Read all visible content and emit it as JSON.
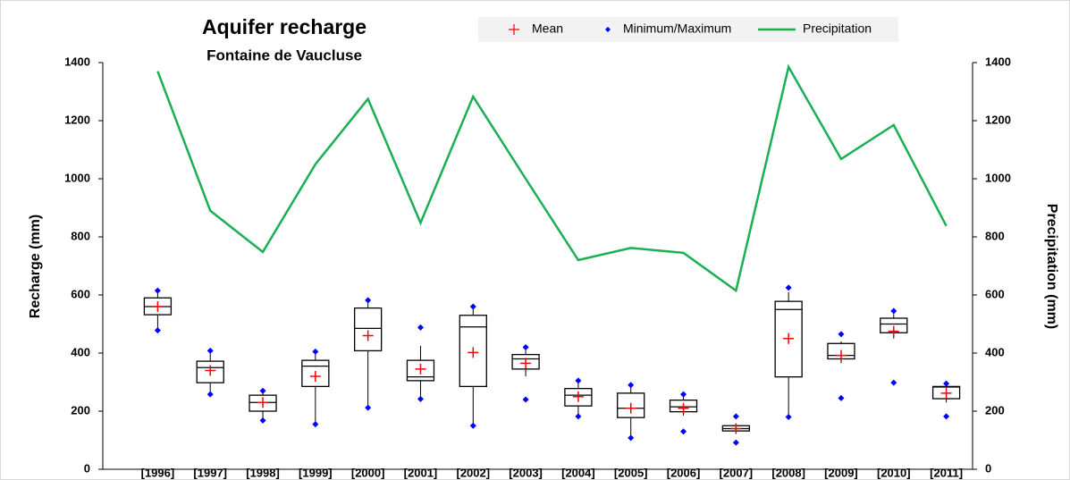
{
  "chart_data": {
    "type": "box",
    "title": "Aquifer recharge",
    "subtitle": "Fontaine de Vaucluse",
    "ylabel": "Recharge (mm)",
    "y2label": "Precipitation (mm)",
    "categories": [
      "[1996]",
      "[1997]",
      "[1998]",
      "[1999]",
      "[2000]",
      "[2001]",
      "[2002]",
      "[2003]",
      "[2004]",
      "[2005]",
      "[2006]",
      "[2007]",
      "[2008]",
      "[2009]",
      "[2010]",
      "[2011]"
    ],
    "boxes": {
      "color": "#000000",
      "whisker_low": [
        478,
        258,
        168,
        155,
        212,
        242,
        150,
        320,
        185,
        110,
        185,
        130,
        180,
        365,
        450,
        230
      ],
      "q1": [
        532,
        298,
        200,
        285,
        408,
        305,
        285,
        345,
        218,
        178,
        198,
        132,
        318,
        380,
        470,
        243
      ],
      "median": [
        560,
        350,
        230,
        355,
        485,
        318,
        490,
        380,
        255,
        210,
        215,
        140,
        550,
        392,
        500,
        283
      ],
      "q3": [
        590,
        372,
        255,
        375,
        555,
        375,
        530,
        395,
        278,
        262,
        238,
        150,
        578,
        433,
        520,
        285
      ],
      "whisker_high": [
        615,
        408,
        270,
        405,
        582,
        425,
        560,
        410,
        300,
        290,
        250,
        155,
        610,
        440,
        535,
        288
      ]
    },
    "series": [
      {
        "name": "Mean",
        "color": "#ff0000",
        "marker": "plus",
        "values": [
          560,
          340,
          230,
          320,
          460,
          345,
          402,
          365,
          250,
          210,
          210,
          140,
          450,
          392,
          475,
          262
        ]
      },
      {
        "name": "Minimum/Maximum",
        "color": "#0000ff",
        "marker": "diamond",
        "min": [
          478,
          258,
          168,
          155,
          212,
          242,
          150,
          240,
          182,
          108,
          130,
          92,
          180,
          245,
          298,
          182
        ],
        "max": [
          615,
          408,
          270,
          405,
          582,
          488,
          560,
          420,
          305,
          290,
          258,
          182,
          625,
          465,
          545,
          295
        ]
      },
      {
        "name": "Precipitation",
        "color": "#1aaf54",
        "axis": "y2",
        "values": [
          1370,
          890,
          748,
          1050,
          1275,
          848,
          1283,
          1000,
          720,
          762,
          745,
          615,
          1385,
          1068,
          1185,
          838
        ]
      }
    ],
    "ylim": [
      0,
      1400
    ],
    "yticks": [
      0,
      200,
      400,
      600,
      800,
      1000,
      1200,
      1400
    ],
    "y2lim": [
      0,
      1400
    ],
    "y2ticks": [
      0,
      200,
      400,
      600,
      800,
      1000,
      1200,
      1400
    ]
  }
}
